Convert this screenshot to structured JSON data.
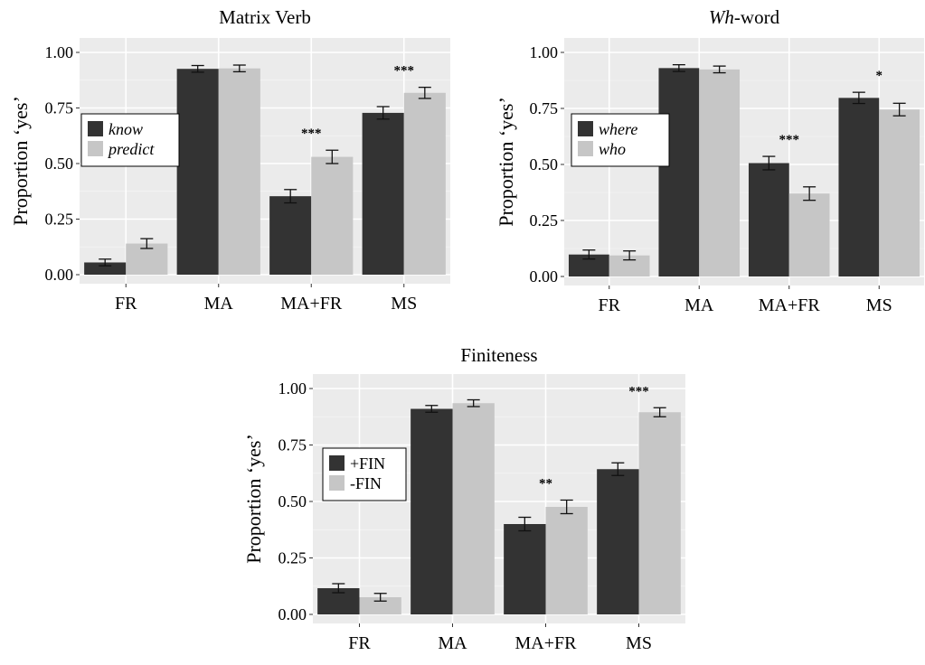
{
  "chart_data": [
    {
      "type": "bar",
      "title": "Matrix Verb",
      "ylabel": "Proportion ‘yes’",
      "ylim": [
        0,
        1
      ],
      "yticks": [
        "0.00",
        "0.25",
        "0.50",
        "0.75",
        "1.00"
      ],
      "categories": [
        "FR",
        "MA",
        "MA+FR",
        "MS"
      ],
      "legend_italic": true,
      "legend_position": "left-middle",
      "series": [
        {
          "name": "know",
          "color": "#333333",
          "values": [
            0.055,
            0.926,
            0.353,
            0.728
          ],
          "errors": [
            0.015,
            0.015,
            0.03,
            0.028
          ]
        },
        {
          "name": "predict",
          "color": "#c6c6c6",
          "values": [
            0.14,
            0.928,
            0.53,
            0.818
          ],
          "errors": [
            0.022,
            0.015,
            0.03,
            0.025
          ]
        }
      ],
      "significance": [
        "",
        "",
        "***",
        "***"
      ]
    },
    {
      "type": "bar",
      "title_parts": [
        {
          "text": "Wh",
          "italic": true
        },
        {
          "text": "-word",
          "italic": false
        }
      ],
      "ylabel": "Proportion ‘yes’",
      "ylim": [
        0,
        1
      ],
      "yticks": [
        "0.00",
        "0.25",
        "0.50",
        "0.75",
        "1.00"
      ],
      "categories": [
        "FR",
        "MA",
        "MA+FR",
        "MS"
      ],
      "legend_italic": true,
      "legend_position": "left-middle",
      "series": [
        {
          "name": "where",
          "color": "#333333",
          "values": [
            0.098,
            0.93,
            0.506,
            0.797
          ],
          "errors": [
            0.02,
            0.015,
            0.03,
            0.025
          ]
        },
        {
          "name": "who",
          "color": "#c6c6c6",
          "values": [
            0.094,
            0.924,
            0.37,
            0.745
          ],
          "errors": [
            0.02,
            0.015,
            0.03,
            0.028
          ]
        }
      ],
      "significance": [
        "",
        "",
        "***",
        "*"
      ]
    },
    {
      "type": "bar",
      "title": "Finiteness",
      "ylabel": "Proportion ‘yes’",
      "ylim": [
        0,
        1
      ],
      "yticks": [
        "0.00",
        "0.25",
        "0.50",
        "0.75",
        "1.00"
      ],
      "categories": [
        "FR",
        "MA",
        "MA+FR",
        "MS"
      ],
      "legend_italic": false,
      "legend_position": "left-middle",
      "series": [
        {
          "name": "+FIN",
          "color": "#333333",
          "values": [
            0.116,
            0.91,
            0.4,
            0.643
          ],
          "errors": [
            0.02,
            0.015,
            0.03,
            0.028
          ]
        },
        {
          "name": "-FIN",
          "color": "#c6c6c6",
          "values": [
            0.076,
            0.935,
            0.476,
            0.895
          ],
          "errors": [
            0.017,
            0.015,
            0.03,
            0.02
          ]
        }
      ],
      "significance": [
        "",
        "",
        "**",
        "***"
      ]
    }
  ]
}
